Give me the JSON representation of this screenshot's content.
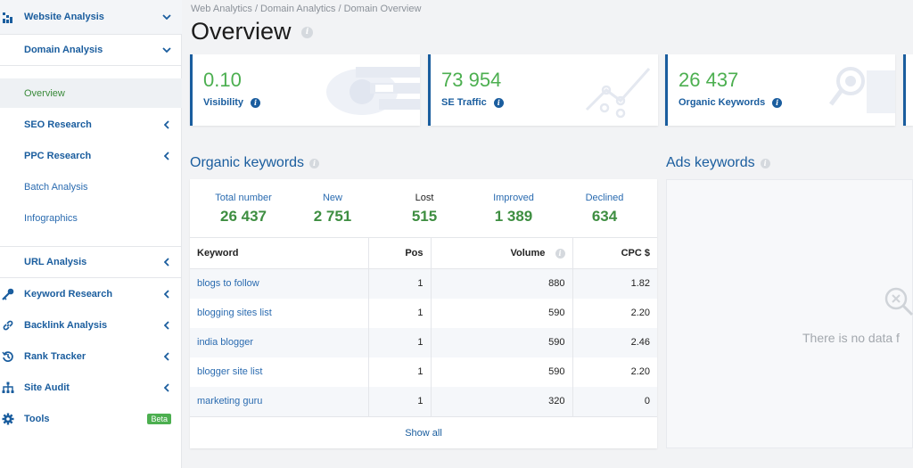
{
  "sidebar": {
    "website_analysis": "Website Analysis",
    "domain_analysis": "Domain Analysis",
    "overview": "Overview",
    "seo_research": "SEO Research",
    "ppc_research": "PPC Research",
    "batch_analysis": "Batch Analysis",
    "infographics": "Infographics",
    "url_analysis": "URL Analysis",
    "keyword_research": "Keyword Research",
    "backlink_analysis": "Backlink Analysis",
    "rank_tracker": "Rank Tracker",
    "site_audit": "Site Audit",
    "tools": "Tools",
    "beta": "Beta"
  },
  "header": {
    "breadcrumb": "Web Analytics / Domain Analytics / Domain Overview",
    "title": "Overview"
  },
  "cards": [
    {
      "value": "0.10",
      "label": "Visibility"
    },
    {
      "value": "73 954",
      "label": "SE Traffic"
    },
    {
      "value": "26 437",
      "label": "Organic Keywords"
    }
  ],
  "organic": {
    "title": "Organic keywords",
    "stats": [
      {
        "label": "Total number",
        "value": "26 437"
      },
      {
        "label": "New",
        "value": "2 751"
      },
      {
        "label": "Lost",
        "value": "515"
      },
      {
        "label": "Improved",
        "value": "1 389"
      },
      {
        "label": "Declined",
        "value": "634"
      }
    ],
    "columns": {
      "keyword": "Keyword",
      "pos": "Pos",
      "volume": "Volume",
      "cpc": "CPC $"
    },
    "rows": [
      {
        "keyword": "blogs to follow",
        "pos": "1",
        "volume": "880",
        "cpc": "1.82"
      },
      {
        "keyword": "blogging sites list",
        "pos": "1",
        "volume": "590",
        "cpc": "2.20"
      },
      {
        "keyword": "india blogger",
        "pos": "1",
        "volume": "590",
        "cpc": "2.46"
      },
      {
        "keyword": "blogger site list",
        "pos": "1",
        "volume": "590",
        "cpc": "2.20"
      },
      {
        "keyword": "marketing guru",
        "pos": "1",
        "volume": "320",
        "cpc": "0"
      }
    ],
    "show_all": "Show all"
  },
  "ads": {
    "title": "Ads keywords",
    "empty": "There is no data f"
  },
  "colors": {
    "accent": "#1a5d9e",
    "value_green": "#4caf50",
    "beta_green": "#4caf50"
  },
  "icons": [
    "chart-icon",
    "key-icon",
    "link-icon",
    "history-icon",
    "sitemap-icon",
    "gear-icon",
    "info-icon",
    "chevron-down-icon",
    "chevron-left-icon",
    "search-icon"
  ]
}
